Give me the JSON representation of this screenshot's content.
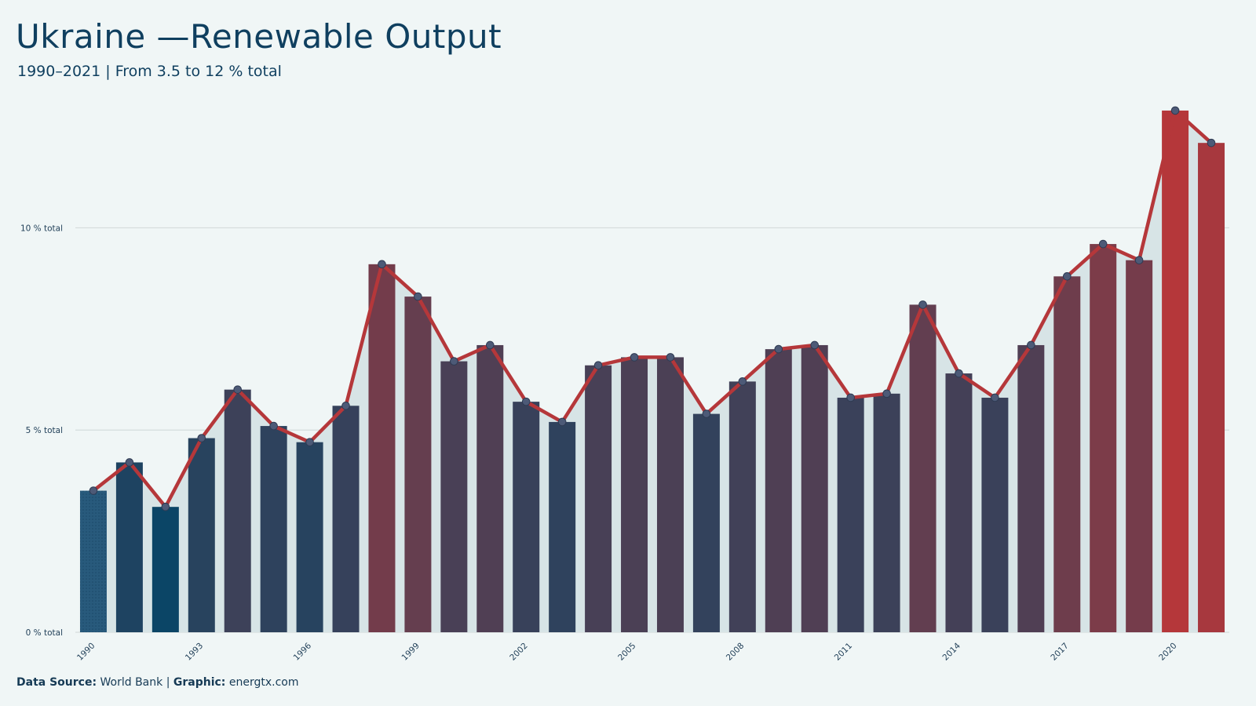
{
  "title": "Ukraine —Renewable Output",
  "subtitle": "1990–2021 | From 3.5 to 12 % total",
  "footer": {
    "source_label": "Data Source:",
    "source_value": "World Bank",
    "separator": "|",
    "graphic_label": "Graphic:",
    "graphic_value": "energtx.com"
  },
  "colors": {
    "low": "#0b4566",
    "high": "#b5373a",
    "line": "#b5373a",
    "point": "#4d5a77",
    "area": "#d7e4e6",
    "grid": "#d5dcdc",
    "background": "#f0f6f6"
  },
  "chart_data": {
    "type": "bar",
    "overlay": "line",
    "x": [
      1990,
      1991,
      1992,
      1993,
      1994,
      1995,
      1996,
      1997,
      1998,
      1999,
      2000,
      2001,
      2002,
      2003,
      2004,
      2005,
      2006,
      2007,
      2008,
      2009,
      2010,
      2011,
      2012,
      2013,
      2014,
      2015,
      2016,
      2017,
      2018,
      2019,
      2020,
      2021
    ],
    "values": [
      3.5,
      4.2,
      3.1,
      4.8,
      6.0,
      5.1,
      4.7,
      5.6,
      9.1,
      8.3,
      6.7,
      7.1,
      5.7,
      5.2,
      6.6,
      6.8,
      6.8,
      5.4,
      6.2,
      7.0,
      7.1,
      5.8,
      5.9,
      8.1,
      6.4,
      5.8,
      7.1,
      8.8,
      9.6,
      9.2,
      12.9,
      12.1
    ],
    "x_tick_labels": [
      "1990",
      "1993",
      "1996",
      "1999",
      "2002",
      "2005",
      "2008",
      "2011",
      "2014",
      "2017",
      "2020"
    ],
    "y_ticks": [
      0,
      5,
      10
    ],
    "y_tick_labels": [
      "0 % total",
      "5 % total",
      "10 % total"
    ],
    "ylim": [
      0,
      13.5
    ],
    "grid": true,
    "legend": "none"
  }
}
